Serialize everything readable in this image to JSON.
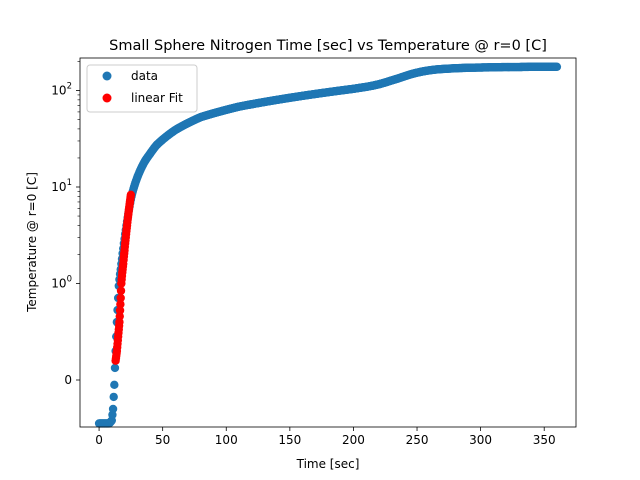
{
  "chart_data": {
    "type": "scatter",
    "title": "Small Sphere Nitrogen Time [sec] vs Temperature @ r=0 [C]",
    "xlabel": "Time [sec]",
    "ylabel": "Temperature @ r=0 [C]",
    "xscale": "linear",
    "yscale": "symlog",
    "xlim": [
      -15,
      375
    ],
    "x_ticks": [
      0,
      50,
      100,
      150,
      200,
      250,
      300,
      350
    ],
    "x_tick_labels": [
      "0",
      "50",
      "100",
      "150",
      "200",
      "250",
      "300",
      "350"
    ],
    "y_ticks": [
      0,
      1,
      10,
      100
    ],
    "y_tick_labels": [
      "0",
      "10^0",
      "10^1",
      "10^2"
    ],
    "grid": false,
    "legend_position": "top-left",
    "series": [
      {
        "name": "data",
        "color": "#1f77b4",
        "marker": "circle",
        "description": "Measured core temperature; continuous dense marker trace",
        "x": [
          0,
          4,
          8,
          10,
          11,
          12,
          13,
          14,
          15,
          16,
          17,
          18,
          19,
          20,
          21,
          22,
          23,
          24,
          25,
          26,
          28,
          30,
          33,
          36,
          40,
          45,
          50,
          55,
          60,
          70,
          80,
          90,
          100,
          110,
          120,
          130,
          140,
          150,
          160,
          170,
          180,
          190,
          200,
          210,
          215,
          220,
          225,
          230,
          235,
          240,
          245,
          250,
          255,
          260,
          265,
          270,
          280,
          290,
          300,
          310,
          320,
          330,
          340,
          350,
          360
        ],
        "y": [
          -0.45,
          -0.45,
          -0.45,
          -0.42,
          -0.3,
          -0.05,
          0.3,
          0.6,
          0.85,
          1.1,
          1.4,
          1.8,
          2.3,
          2.9,
          3.6,
          4.4,
          5.3,
          6.3,
          7.4,
          8.5,
          10.5,
          12.5,
          15.5,
          18.5,
          22,
          27,
          31,
          35,
          39,
          46,
          53,
          58,
          63,
          68,
          72,
          76,
          80,
          84,
          88,
          92,
          96,
          100,
          104,
          109,
          112,
          116,
          121,
          127,
          133,
          140,
          147,
          153,
          158,
          162,
          165,
          167,
          170,
          172,
          173,
          174,
          175,
          175,
          176,
          176,
          176
        ]
      },
      {
        "name": "linear Fit",
        "color": "#ff0000",
        "marker": "circle",
        "description": "Points of the early-rise segment used for a linear fit",
        "x": [
          13,
          14,
          15,
          16,
          16.5,
          17,
          17.5,
          18,
          18.5,
          19,
          19.5,
          20,
          20.5,
          21,
          21.5,
          22,
          22.5,
          23,
          23.5,
          24,
          24.5,
          25
        ],
        "y": [
          0.2,
          0.3,
          0.45,
          0.6,
          0.72,
          0.85,
          1.0,
          1.2,
          1.4,
          1.6,
          1.9,
          2.2,
          2.6,
          3.0,
          3.5,
          4.0,
          4.6,
          5.2,
          5.9,
          6.6,
          7.4,
          8.3
        ]
      }
    ]
  }
}
